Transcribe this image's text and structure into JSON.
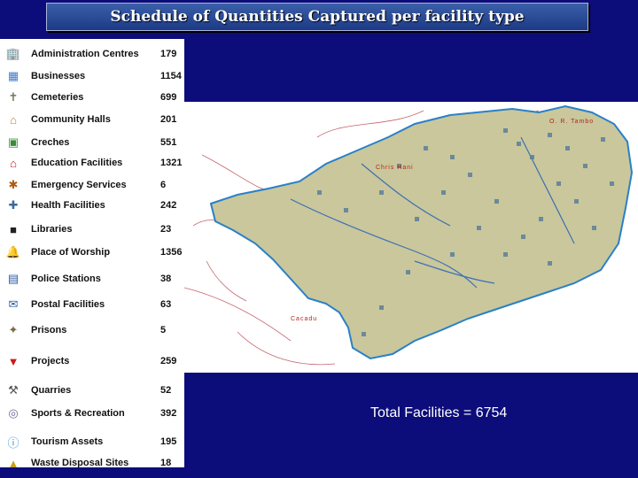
{
  "title": "Schedule of Quantities Captured per facility type",
  "facilities": [
    {
      "label": "Administration Centres",
      "count": "179",
      "icon": "office-building-icon"
    },
    {
      "label": "Businesses",
      "count": "1154",
      "icon": "business-icon"
    },
    {
      "label": "Cemeteries",
      "count": "699",
      "icon": "cemetery-icon"
    },
    {
      "label": "Community Halls",
      "count": "201",
      "icon": "community-hall-icon"
    },
    {
      "label": "Creches",
      "count": "551",
      "icon": "creche-icon"
    },
    {
      "label": "Education Facilities",
      "count": "1321",
      "icon": "school-icon"
    },
    {
      "label": "Emergency Services",
      "count": "6",
      "icon": "emergency-icon"
    },
    {
      "label": "Health Facilities",
      "count": "242",
      "icon": "health-icon"
    },
    {
      "label": "Libraries",
      "count": "23",
      "icon": "library-icon"
    },
    {
      "label": "Place of Worship",
      "count": "1356",
      "icon": "bell-icon"
    },
    {
      "label": "Police Stations",
      "count": "38",
      "icon": "police-icon"
    },
    {
      "label": "Postal Facilities",
      "count": "63",
      "icon": "post-icon"
    },
    {
      "label": "Prisons",
      "count": "5",
      "icon": "prison-icon"
    },
    {
      "label": "Projects",
      "count": "259",
      "icon": "pin-icon"
    },
    {
      "label": "Quarries",
      "count": "52",
      "icon": "pickaxe-icon"
    },
    {
      "label": "Sports & Recreation",
      "count": "392",
      "icon": "sports-icon"
    },
    {
      "label": "Tourism Assets",
      "count": "195",
      "icon": "info-icon"
    },
    {
      "label": "Waste Disposal Sites",
      "count": "18",
      "icon": "waste-icon"
    }
  ],
  "map": {
    "labels": [
      "O. R. Tambo",
      "Chris Hani",
      "Cacadu"
    ],
    "colors": {
      "region": "#c9c79b",
      "coast": "#2a80c8",
      "road": "#b0303a",
      "river": "#3e6fb5"
    }
  },
  "total": "Total Facilities = 6754"
}
